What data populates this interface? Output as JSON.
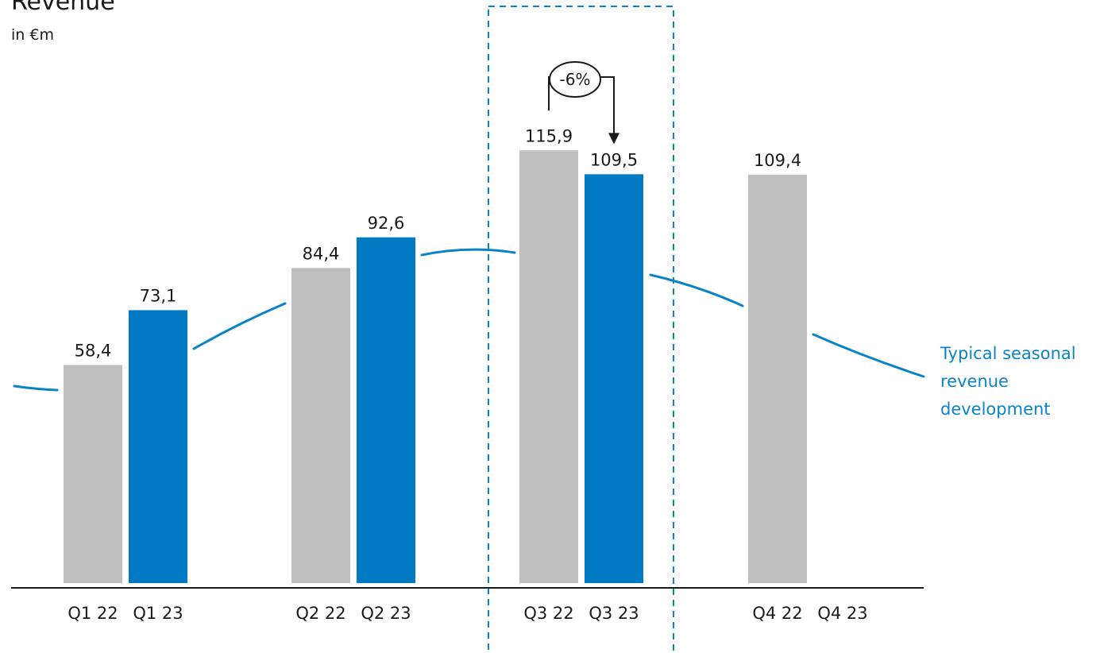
{
  "chart_data": {
    "type": "bar",
    "title": "Revenue",
    "subtitle": "in €m",
    "categories": [
      "Q1 22",
      "Q1 23",
      "Q2 22",
      "Q2 23",
      "Q3 22",
      "Q3 23",
      "Q4 22",
      "Q4 23"
    ],
    "series": [
      {
        "values": [
          58.4,
          null,
          84.4,
          null,
          115.9,
          null,
          109.4,
          null
        ],
        "labels": [
          "58,4",
          "",
          "84,4",
          "",
          "115,9",
          "",
          "109,4",
          ""
        ]
      },
      {
        "values": [
          null,
          73.1,
          null,
          92.6,
          null,
          109.5,
          null,
          null
        ],
        "labels": [
          "",
          "73,1",
          "",
          "92,6",
          "",
          "109,5",
          "",
          ""
        ]
      }
    ],
    "ylim": [
      0,
      125
    ],
    "grid": false,
    "legend": "none",
    "highlight": {
      "categories": [
        "Q3 22",
        "Q3 23"
      ],
      "style": "dashed-box"
    },
    "annotation": {
      "text": "-6%",
      "from": "Q3 22",
      "to": "Q3 23"
    },
    "trend_line": {
      "label_lines": [
        "Typical seasonal",
        "revenue",
        "development"
      ]
    }
  },
  "colors": {
    "prior_year": "#bfbfbf",
    "current_year": "#007ac3",
    "trend": "#0a84c6",
    "highlight_box": "#0a84c6",
    "axis": "#1a1a1a",
    "text": "#1a1a1a"
  }
}
